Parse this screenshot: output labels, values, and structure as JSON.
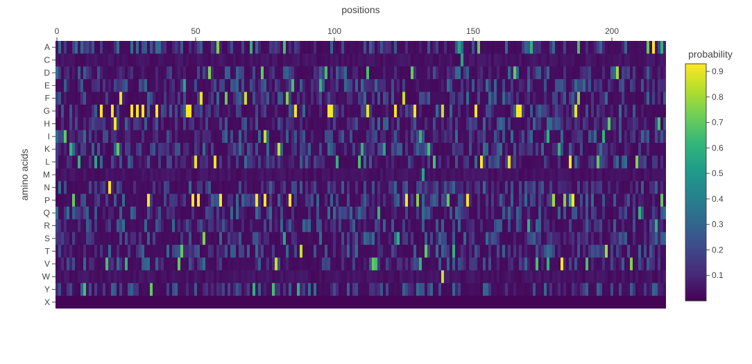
{
  "chart_data": {
    "type": "heatmap",
    "title": "",
    "xlabel": "positions",
    "ylabel": "amino acids",
    "xaxis_side": "top",
    "x_range": [
      0,
      219
    ],
    "x_ticks": [
      0,
      50,
      100,
      150,
      200
    ],
    "y_categories": [
      "A",
      "C",
      "D",
      "E",
      "F",
      "G",
      "H",
      "I",
      "K",
      "L",
      "M",
      "N",
      "P",
      "Q",
      "R",
      "S",
      "T",
      "V",
      "W",
      "Y",
      "X"
    ],
    "colorscale": "viridis",
    "colorbar": {
      "title": "probability",
      "range": [
        0,
        0.93
      ],
      "ticks": [
        0.1,
        0.2,
        0.3,
        0.4,
        0.5,
        0.6,
        0.7,
        0.8,
        0.9
      ]
    },
    "background_probability": 0.02,
    "high_cells": [
      {
        "aa": "A",
        "x": 58,
        "v": 0.75
      },
      {
        "aa": "A",
        "x": 70,
        "v": 0.6
      },
      {
        "aa": "A",
        "x": 82,
        "v": 0.65
      },
      {
        "aa": "A",
        "x": 145,
        "v": 0.55
      },
      {
        "aa": "A",
        "x": 152,
        "v": 0.7
      },
      {
        "aa": "A",
        "x": 171,
        "v": 0.6
      },
      {
        "aa": "A",
        "x": 188,
        "v": 0.65
      },
      {
        "aa": "A",
        "x": 213,
        "v": 0.7
      },
      {
        "aa": "A",
        "x": 215,
        "v": 0.93
      },
      {
        "aa": "A",
        "x": 218,
        "v": 0.6
      },
      {
        "aa": "C",
        "x": 146,
        "v": 0.55
      },
      {
        "aa": "D",
        "x": 55,
        "v": 0.75
      },
      {
        "aa": "D",
        "x": 74,
        "v": 0.7
      },
      {
        "aa": "D",
        "x": 97,
        "v": 0.65
      },
      {
        "aa": "D",
        "x": 112,
        "v": 0.65
      },
      {
        "aa": "D",
        "x": 128,
        "v": 0.7
      },
      {
        "aa": "D",
        "x": 165,
        "v": 0.7
      },
      {
        "aa": "D",
        "x": 202,
        "v": 0.8
      },
      {
        "aa": "E",
        "x": 46,
        "v": 0.55
      },
      {
        "aa": "E",
        "x": 85,
        "v": 0.65
      },
      {
        "aa": "E",
        "x": 95,
        "v": 0.6
      },
      {
        "aa": "F",
        "x": 23,
        "v": 0.9
      },
      {
        "aa": "F",
        "x": 52,
        "v": 0.9
      },
      {
        "aa": "F",
        "x": 61,
        "v": 0.7
      },
      {
        "aa": "F",
        "x": 68,
        "v": 0.85
      },
      {
        "aa": "F",
        "x": 83,
        "v": 0.75
      },
      {
        "aa": "F",
        "x": 125,
        "v": 0.85
      },
      {
        "aa": "F",
        "x": 188,
        "v": 0.75
      },
      {
        "aa": "G",
        "x": 16,
        "v": 0.92
      },
      {
        "aa": "G",
        "x": 20,
        "v": 0.92
      },
      {
        "aa": "G",
        "x": 27,
        "v": 0.92
      },
      {
        "aa": "G",
        "x": 29,
        "v": 0.92
      },
      {
        "aa": "G",
        "x": 31,
        "v": 0.92
      },
      {
        "aa": "G",
        "x": 36,
        "v": 0.92
      },
      {
        "aa": "G",
        "x": 47,
        "v": 0.92
      },
      {
        "aa": "G",
        "x": 48,
        "v": 0.92
      },
      {
        "aa": "G",
        "x": 86,
        "v": 0.92
      },
      {
        "aa": "G",
        "x": 98,
        "v": 0.92
      },
      {
        "aa": "G",
        "x": 99,
        "v": 0.92
      },
      {
        "aa": "G",
        "x": 112,
        "v": 0.9
      },
      {
        "aa": "G",
        "x": 122,
        "v": 0.92
      },
      {
        "aa": "G",
        "x": 129,
        "v": 0.92
      },
      {
        "aa": "G",
        "x": 139,
        "v": 0.85
      },
      {
        "aa": "G",
        "x": 151,
        "v": 0.92
      },
      {
        "aa": "G",
        "x": 166,
        "v": 0.92
      },
      {
        "aa": "G",
        "x": 167,
        "v": 0.92
      },
      {
        "aa": "G",
        "x": 187,
        "v": 0.9
      },
      {
        "aa": "H",
        "x": 21,
        "v": 0.92
      },
      {
        "aa": "H",
        "x": 199,
        "v": 0.7
      },
      {
        "aa": "H",
        "x": 217,
        "v": 0.65
      },
      {
        "aa": "I",
        "x": 3,
        "v": 0.7
      },
      {
        "aa": "I",
        "x": 75,
        "v": 0.85
      },
      {
        "aa": "I",
        "x": 131,
        "v": 0.6
      },
      {
        "aa": "I",
        "x": 177,
        "v": 0.6
      },
      {
        "aa": "I",
        "x": 197,
        "v": 0.6
      },
      {
        "aa": "K",
        "x": 5,
        "v": 0.6
      },
      {
        "aa": "K",
        "x": 22,
        "v": 0.7
      },
      {
        "aa": "K",
        "x": 80,
        "v": 0.85
      },
      {
        "aa": "K",
        "x": 110,
        "v": 0.6
      },
      {
        "aa": "K",
        "x": 118,
        "v": 0.55
      },
      {
        "aa": "K",
        "x": 134,
        "v": 0.65
      },
      {
        "aa": "K",
        "x": 181,
        "v": 0.6
      },
      {
        "aa": "L",
        "x": 8,
        "v": 0.6
      },
      {
        "aa": "L",
        "x": 14,
        "v": 0.55
      },
      {
        "aa": "L",
        "x": 50,
        "v": 0.9
      },
      {
        "aa": "L",
        "x": 57,
        "v": 0.9
      },
      {
        "aa": "L",
        "x": 101,
        "v": 0.6
      },
      {
        "aa": "L",
        "x": 109,
        "v": 0.65
      },
      {
        "aa": "L",
        "x": 136,
        "v": 0.65
      },
      {
        "aa": "L",
        "x": 153,
        "v": 0.92
      },
      {
        "aa": "L",
        "x": 163,
        "v": 0.9
      },
      {
        "aa": "L",
        "x": 185,
        "v": 0.92
      },
      {
        "aa": "L",
        "x": 195,
        "v": 0.7
      },
      {
        "aa": "L",
        "x": 209,
        "v": 0.75
      },
      {
        "aa": "M",
        "x": 132,
        "v": 0.55
      },
      {
        "aa": "N",
        "x": 19,
        "v": 0.92
      },
      {
        "aa": "P",
        "x": 6,
        "v": 0.7
      },
      {
        "aa": "P",
        "x": 33,
        "v": 0.92
      },
      {
        "aa": "P",
        "x": 49,
        "v": 0.92
      },
      {
        "aa": "P",
        "x": 51,
        "v": 0.92
      },
      {
        "aa": "P",
        "x": 59,
        "v": 0.92
      },
      {
        "aa": "P",
        "x": 72,
        "v": 0.92
      },
      {
        "aa": "P",
        "x": 75,
        "v": 0.92
      },
      {
        "aa": "P",
        "x": 84,
        "v": 0.92
      },
      {
        "aa": "P",
        "x": 126,
        "v": 0.92
      },
      {
        "aa": "P",
        "x": 130,
        "v": 0.75
      },
      {
        "aa": "P",
        "x": 141,
        "v": 0.7
      },
      {
        "aa": "P",
        "x": 148,
        "v": 0.92
      },
      {
        "aa": "P",
        "x": 179,
        "v": 0.8
      },
      {
        "aa": "P",
        "x": 183,
        "v": 0.75
      },
      {
        "aa": "P",
        "x": 185,
        "v": 0.6
      },
      {
        "aa": "P",
        "x": 186,
        "v": 0.92
      },
      {
        "aa": "P",
        "x": 218,
        "v": 0.7
      },
      {
        "aa": "Q",
        "x": 116,
        "v": 0.6
      },
      {
        "aa": "Q",
        "x": 210,
        "v": 0.6
      },
      {
        "aa": "R",
        "x": 170,
        "v": 0.6
      },
      {
        "aa": "R",
        "x": 216,
        "v": 0.6
      },
      {
        "aa": "S",
        "x": 53,
        "v": 0.75
      },
      {
        "aa": "S",
        "x": 82,
        "v": 0.55
      },
      {
        "aa": "S",
        "x": 123,
        "v": 0.6
      },
      {
        "aa": "T",
        "x": 45,
        "v": 0.7
      },
      {
        "aa": "T",
        "x": 88,
        "v": 0.85
      },
      {
        "aa": "T",
        "x": 133,
        "v": 0.7
      },
      {
        "aa": "T",
        "x": 143,
        "v": 0.6
      },
      {
        "aa": "T",
        "x": 198,
        "v": 0.8
      },
      {
        "aa": "V",
        "x": 18,
        "v": 0.65
      },
      {
        "aa": "V",
        "x": 25,
        "v": 0.6
      },
      {
        "aa": "V",
        "x": 44,
        "v": 0.7
      },
      {
        "aa": "V",
        "x": 79,
        "v": 0.85
      },
      {
        "aa": "V",
        "x": 114,
        "v": 0.7
      },
      {
        "aa": "V",
        "x": 115,
        "v": 0.65
      },
      {
        "aa": "V",
        "x": 131,
        "v": 0.6
      },
      {
        "aa": "V",
        "x": 173,
        "v": 0.65
      },
      {
        "aa": "V",
        "x": 177,
        "v": 0.6
      },
      {
        "aa": "V",
        "x": 182,
        "v": 0.92
      },
      {
        "aa": "V",
        "x": 191,
        "v": 0.65
      },
      {
        "aa": "V",
        "x": 207,
        "v": 0.75
      },
      {
        "aa": "W",
        "x": 139,
        "v": 0.85
      },
      {
        "aa": "Y",
        "x": 10,
        "v": 0.65
      },
      {
        "aa": "Y",
        "x": 34,
        "v": 0.7
      },
      {
        "aa": "Y",
        "x": 71,
        "v": 0.6
      },
      {
        "aa": "Y",
        "x": 78,
        "v": 0.65
      },
      {
        "aa": "Y",
        "x": 87,
        "v": 0.6
      }
    ]
  }
}
